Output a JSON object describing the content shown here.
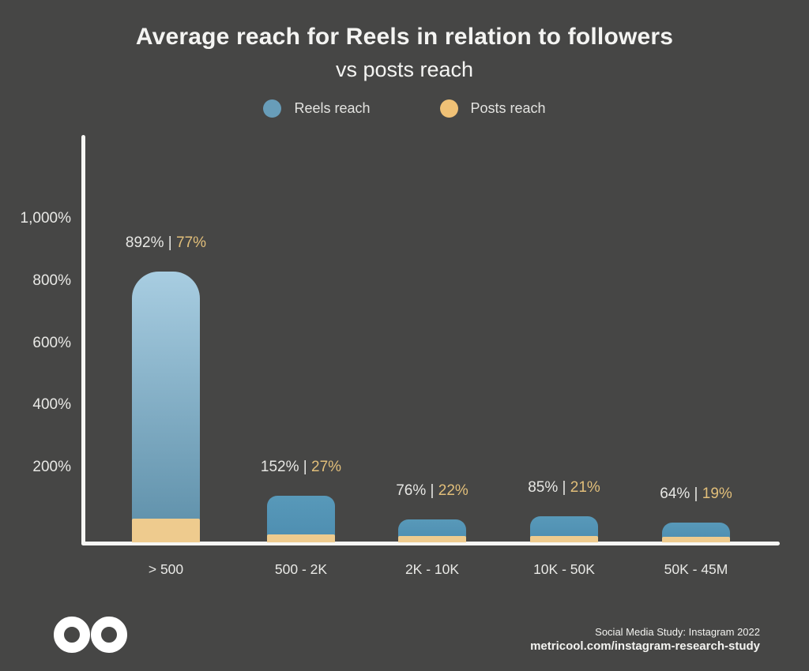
{
  "title": {
    "line1": "Average reach for Reels in relation to followers",
    "line2": "vs posts reach"
  },
  "legend": [
    {
      "label": "Reels reach",
      "color": "#689db9"
    },
    {
      "label": "Posts reach",
      "color": "#f0c176"
    }
  ],
  "chart_data": {
    "type": "bar",
    "title": "Average reach for Reels in relation to followers vs posts reach",
    "categories": [
      "> 500",
      "500 - 2K",
      "2K - 10K",
      "10K - 50K",
      "50K - 45M"
    ],
    "series": [
      {
        "name": "Reels reach",
        "values": [
          892,
          152,
          76,
          85,
          64
        ],
        "unit": "%",
        "gradient_tall": [
          "#a8cde1",
          "#5c8ea8"
        ],
        "gradient_small": [
          "#5899b9",
          "#4d8db0"
        ]
      },
      {
        "name": "Posts reach",
        "values": [
          77,
          27,
          22,
          21,
          19
        ],
        "unit": "%",
        "color": "#eecb8e"
      }
    ],
    "data_labels": [
      [
        "892%",
        "77%"
      ],
      [
        "152%",
        "27%"
      ],
      [
        "76%",
        "22%"
      ],
      [
        "85%",
        "21%"
      ],
      [
        "64%",
        "19%"
      ]
    ],
    "data_label_separator": "|",
    "y_ticks": [
      "200%",
      "400%",
      "600%",
      "800%",
      "1,000%"
    ],
    "y_tick_values": [
      200,
      400,
      600,
      800,
      1000
    ],
    "ylim": [
      0,
      1100
    ],
    "grid": false,
    "legend_position": "top",
    "xlabel": "",
    "ylabel": ""
  },
  "footer": {
    "study": "Social Media Study: Instagram 2022",
    "url": "metricool.com/instagram-research-study",
    "logo": "metricool-infinity-logo"
  },
  "colors": {
    "background": "#464645",
    "axis": "#f7f7f4",
    "title": "#f4f4f2",
    "tick": "#e9e9e6",
    "category": "#e9e9e6",
    "label_light": "#e7e7e4",
    "label_yellow": "#e2bf7a",
    "footer": "#f3f3f0",
    "logo": "#ffffff"
  }
}
